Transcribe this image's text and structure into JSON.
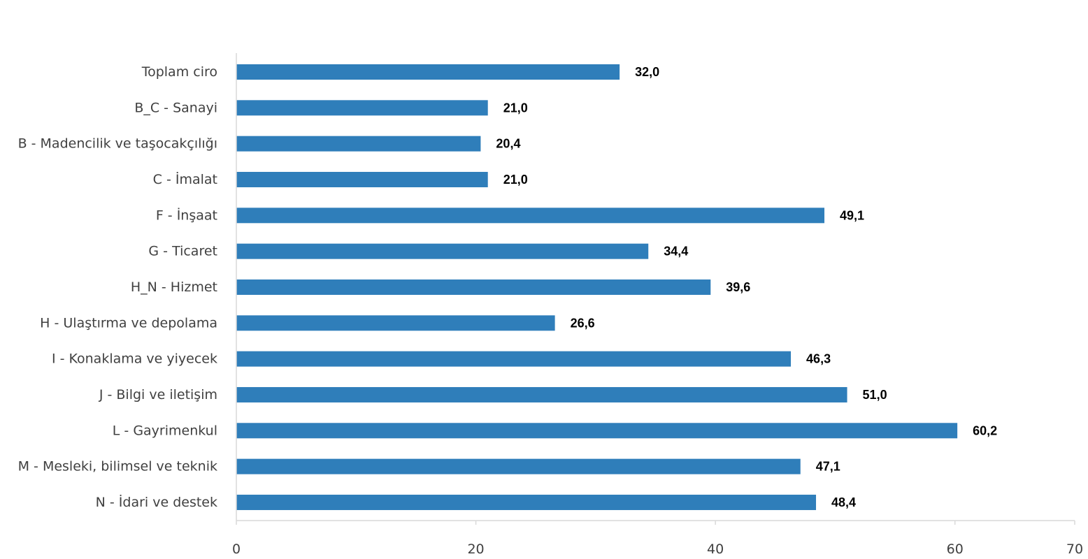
{
  "chart_data": {
    "type": "bar",
    "orientation": "horizontal",
    "categories": [
      "Toplam ciro",
      "B_C - Sanayi",
      "B - Madencilik ve taşocakçılığı",
      "C - İmalat",
      "F - İnşaat",
      "G - Ticaret",
      "H_N - Hizmet",
      "H - Ulaştırma ve depolama",
      "I - Konaklama ve yiyecek",
      "J - Bilgi ve iletişim",
      "L - Gayrimenkul",
      "M - Mesleki, bilimsel ve teknik",
      "N - İdari ve destek"
    ],
    "values": [
      32.0,
      21.0,
      20.4,
      21.0,
      49.1,
      34.4,
      39.6,
      26.6,
      46.3,
      51.0,
      60.2,
      47.1,
      48.4
    ],
    "value_labels": [
      "32,0",
      "21,0",
      "20,4",
      "21,0",
      "49,1",
      "34,4",
      "39,6",
      "26,6",
      "46,3",
      "51,0",
      "60,2",
      "47,1",
      "48,4"
    ],
    "xlim": [
      0,
      70
    ],
    "x_ticks": [
      0,
      20,
      40,
      60,
      70
    ],
    "x_tick_labels": [
      "0",
      "20",
      "40",
      "60",
      "70"
    ],
    "grid": false,
    "legend": "none",
    "bar_color": "#2F7EBA",
    "axis_color": "#D9D9D9"
  }
}
